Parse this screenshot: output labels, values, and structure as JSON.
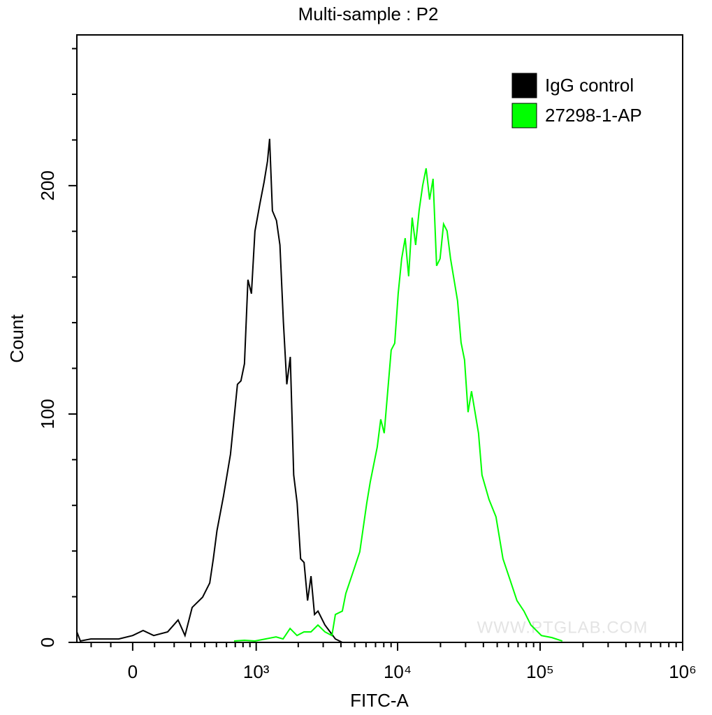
{
  "chart_data": {
    "type": "line",
    "title": "Multi-sample : P2",
    "x_label": "FITC-A",
    "y_label": "Count",
    "watermark": "WWW.PTGLAB.COM",
    "xscale": "asinh",
    "xlim": [
      -285,
      1000000
    ],
    "ylim": [
      0,
      266
    ],
    "xticks": [
      0,
      {
        "value": 1000,
        "label": "10³"
      },
      {
        "value": 10000,
        "label": "10⁴"
      },
      {
        "value": 100000,
        "label": "10⁵"
      },
      {
        "value": 1000000,
        "label": "10⁶"
      }
    ],
    "xminorticks": [
      -200,
      -100,
      100,
      200,
      300,
      400,
      500,
      600,
      700,
      800,
      900,
      2000,
      3000,
      4000,
      5000,
      6000,
      7000,
      8000,
      9000,
      20000,
      30000,
      40000,
      50000,
      60000,
      70000,
      80000,
      90000,
      200000,
      300000,
      400000,
      500000,
      600000,
      700000,
      800000,
      900000
    ],
    "yticks": [
      0,
      100,
      200
    ],
    "yminorticks": [
      20,
      40,
      60,
      80,
      120,
      140,
      160,
      180,
      220,
      240,
      260
    ],
    "legend": "top-right",
    "series": [
      {
        "name": "IgG control",
        "color": "#000000",
        "x": [
          -285,
          -263,
          -202,
          -129,
          -63,
          0,
          47,
          96,
          165,
          222,
          263,
          309,
          384,
          441,
          472,
          505,
          569,
          644,
          727,
          772,
          820,
          870,
          923,
          979,
          1063,
          1140,
          1207,
          1250,
          1309,
          1400,
          1482,
          1568,
          1659,
          1756,
          1857,
          1964,
          2079,
          2199,
          2328,
          2462,
          2606,
          2757,
          3087,
          3655,
          4092,
          4581
        ],
        "values": [
          4.6,
          0.6,
          1.5,
          1.5,
          1.5,
          3,
          5.2,
          3,
          4.6,
          9.8,
          3,
          15.3,
          19.8,
          26,
          36.6,
          48.9,
          64.1,
          82.4,
          113,
          114.5,
          122,
          158.8,
          152.7,
          180,
          192,
          201.5,
          210.7,
          220.5,
          189,
          184.7,
          174,
          140.5,
          113,
          125,
          73.3,
          61,
          36.6,
          35,
          18.3,
          29,
          12.2,
          13.7,
          7.6,
          1.5,
          0,
          0
        ]
      },
      {
        "name": "27298-1-AP",
        "color": "#00ff00",
        "x": [
          685,
          820,
          979,
          1166,
          1390,
          1560,
          1750,
          1960,
          2195,
          2460,
          2755,
          3087,
          3456,
          3655,
          4092,
          4328,
          4848,
          5428,
          6075,
          6425,
          7194,
          7615,
          8054,
          8526,
          9016,
          9545,
          10095,
          10677,
          11304,
          11955,
          12656,
          13386,
          14170,
          14990,
          15850,
          16770,
          17740,
          18780,
          19860,
          21020,
          22240,
          23530,
          24900,
          26340,
          27880,
          29490,
          31220,
          33020,
          36970,
          39100,
          43780,
          49010,
          54880,
          61440,
          68790,
          77010,
          86160,
          102100,
          120900,
          143200
        ],
        "values": [
          0.6,
          0.9,
          0.6,
          1.5,
          2.4,
          1.5,
          6.1,
          3,
          4.6,
          4.6,
          7.6,
          4.6,
          3,
          12.2,
          13.7,
          21.4,
          30.5,
          39.7,
          61,
          70.2,
          85.5,
          97.7,
          91.6,
          110,
          128,
          131,
          152.7,
          168,
          177,
          160.3,
          186,
          174,
          189.3,
          200,
          207.6,
          193.9,
          203,
          164.9,
          168,
          183.2,
          180.2,
          168,
          158.8,
          149.6,
          131.3,
          123.7,
          100.8,
          110,
          91.6,
          73.3,
          62.6,
          55,
          36.6,
          27.5,
          18.3,
          13.7,
          7.6,
          3,
          2.1,
          0.6
        ]
      }
    ]
  }
}
